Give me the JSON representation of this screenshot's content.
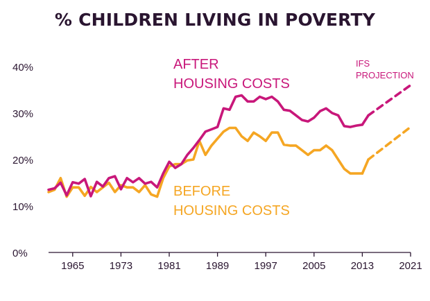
{
  "chart_data": {
    "type": "line",
    "title": "% CHILDREN LIVING IN POVERTY",
    "xlabel": "",
    "ylabel": "",
    "xlim": [
      1961,
      2021
    ],
    "ylim": [
      0,
      40
    ],
    "x_ticks": [
      1965,
      1973,
      1981,
      1989,
      1997,
      2005,
      2013,
      2021
    ],
    "y_ticks": [
      {
        "value": 0,
        "label": "0%"
      },
      {
        "value": 10,
        "label": "10%"
      },
      {
        "value": 20,
        "label": "20%"
      },
      {
        "value": 30,
        "label": "30%"
      },
      {
        "value": 40,
        "label": "40%"
      }
    ],
    "grid": false,
    "series": [
      {
        "name": "AFTER HOUSING COSTS",
        "color": "#c8177a",
        "x": [
          1961,
          1962,
          1963,
          1964,
          1965,
          1966,
          1967,
          1968,
          1969,
          1970,
          1971,
          1972,
          1973,
          1974,
          1975,
          1976,
          1977,
          1978,
          1979,
          1980,
          1981,
          1982,
          1983,
          1984,
          1985,
          1986,
          1987,
          1988,
          1989,
          1990,
          1991,
          1992,
          1993,
          1994,
          1995,
          1996,
          1997,
          1998,
          1999,
          2000,
          2001,
          2002,
          2003,
          2004,
          2005,
          2006,
          2007,
          2008,
          2009,
          2010,
          2011,
          2012,
          2013
        ],
        "values": [
          13.5,
          13.8,
          15.0,
          12.3,
          15.1,
          14.8,
          15.8,
          12.1,
          15.2,
          14.2,
          16.0,
          16.4,
          13.6,
          16.0,
          15.1,
          16.0,
          14.8,
          15.2,
          14.0,
          17.0,
          19.5,
          18.2,
          19.0,
          21.0,
          22.5,
          24.2,
          26.0,
          26.5,
          27.0,
          31.0,
          30.7,
          33.5,
          33.8,
          32.5,
          32.5,
          33.5,
          33.0,
          33.5,
          32.5,
          30.7,
          30.5,
          29.5,
          28.5,
          28.2,
          29.0,
          30.4,
          31.0,
          30.0,
          29.5,
          27.2,
          27.0,
          27.3,
          27.5
        ],
        "label_lines": [
          "AFTER",
          "HOUSING COSTS"
        ]
      },
      {
        "name": "BEFORE HOUSING COSTS",
        "color": "#f5a623",
        "x": [
          1961,
          1962,
          1963,
          1964,
          1965,
          1966,
          1967,
          1968,
          1969,
          1970,
          1971,
          1972,
          1973,
          1974,
          1975,
          1976,
          1977,
          1978,
          1979,
          1980,
          1981,
          1982,
          1983,
          1984,
          1985,
          1986,
          1987,
          1988,
          1989,
          1990,
          1991,
          1992,
          1993,
          1994,
          1995,
          1996,
          1997,
          1998,
          1999,
          2000,
          2001,
          2002,
          2003,
          2004,
          2005,
          2006,
          2007,
          2008,
          2009,
          2010,
          2011,
          2012,
          2013
        ],
        "values": [
          13.0,
          13.5,
          16.0,
          12.0,
          14.0,
          14.0,
          12.2,
          14.1,
          13.0,
          14.0,
          15.0,
          13.0,
          14.5,
          14.0,
          14.0,
          13.0,
          14.5,
          12.5,
          12.0,
          16.0,
          18.5,
          19.0,
          19.0,
          19.8,
          20.0,
          24.0,
          21.0,
          23.0,
          24.5,
          26.0,
          26.8,
          26.8,
          25.0,
          24.0,
          25.8,
          25.0,
          24.0,
          25.8,
          25.8,
          23.2,
          23.0,
          23.0,
          22.0,
          21.0,
          22.0,
          22.0,
          23.0,
          22.0,
          20.0,
          18.0,
          17.0,
          17.0,
          17.0
        ],
        "label_lines": [
          "BEFORE",
          "HOUSING COSTS"
        ]
      }
    ],
    "projections": {
      "label_lines": [
        "IFS",
        "PROJECTION"
      ],
      "after": {
        "x": [
          2013,
          2014,
          2021
        ],
        "values": [
          27.5,
          29.5,
          36.0
        ]
      },
      "before": {
        "x": [
          2013,
          2014,
          2021
        ],
        "values": [
          17.0,
          20.0,
          27.0
        ]
      }
    }
  }
}
